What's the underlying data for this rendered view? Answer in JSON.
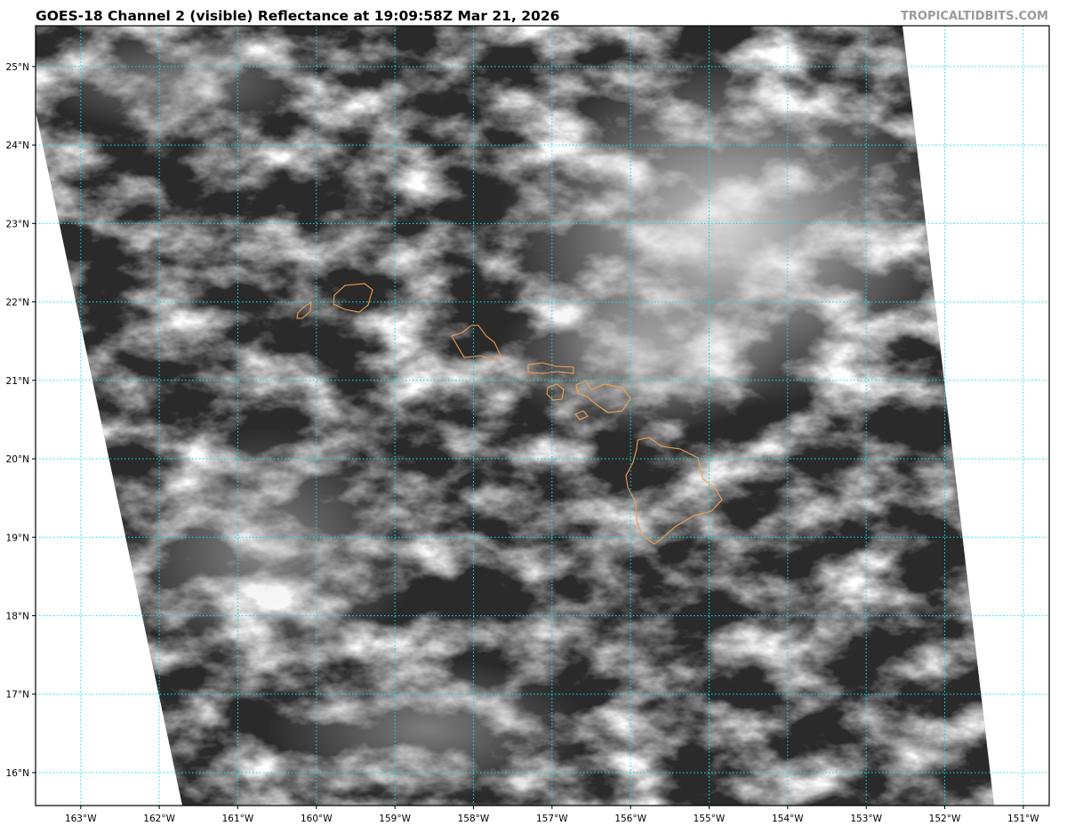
{
  "title": "GOES-18 Channel 2 (visible) Reflectance at 19:09:58Z Mar 21, 2026",
  "watermark": "TROPICALTIDBITS.COM",
  "map": {
    "projection": "equirectangular",
    "lon_range": [
      -163.575,
      -150.67
    ],
    "lat_range": [
      15.58,
      25.52
    ],
    "lat_ticks": [
      {
        "value": 16,
        "label": "16°N"
      },
      {
        "value": 17,
        "label": "17°N"
      },
      {
        "value": 18,
        "label": "18°N"
      },
      {
        "value": 19,
        "label": "19°N"
      },
      {
        "value": 20,
        "label": "20°N"
      },
      {
        "value": 21,
        "label": "21°N"
      },
      {
        "value": 22,
        "label": "22°N"
      },
      {
        "value": 23,
        "label": "23°N"
      },
      {
        "value": 24,
        "label": "24°N"
      },
      {
        "value": 25,
        "label": "25°N"
      }
    ],
    "lon_ticks": [
      {
        "value": -163,
        "label": "163°W"
      },
      {
        "value": -162,
        "label": "162°W"
      },
      {
        "value": -161,
        "label": "161°W"
      },
      {
        "value": -160,
        "label": "160°W"
      },
      {
        "value": -159,
        "label": "159°W"
      },
      {
        "value": -158,
        "label": "158°W"
      },
      {
        "value": -157,
        "label": "157°W"
      },
      {
        "value": -156,
        "label": "156°W"
      },
      {
        "value": -155,
        "label": "155°W"
      },
      {
        "value": -154,
        "label": "154°W"
      },
      {
        "value": -153,
        "label": "153°W"
      },
      {
        "value": -152,
        "label": "152°W"
      },
      {
        "value": -151,
        "label": "151°W"
      }
    ],
    "colors": {
      "gridline": "#00e5e5",
      "coastline": "#f0a050",
      "ocean_dark": "#2a2a2a",
      "cloud": "#d8d8d8",
      "no_data": "#ffffff"
    },
    "layers": [
      "visible-reflectance",
      "coastlines",
      "graticule"
    ]
  }
}
